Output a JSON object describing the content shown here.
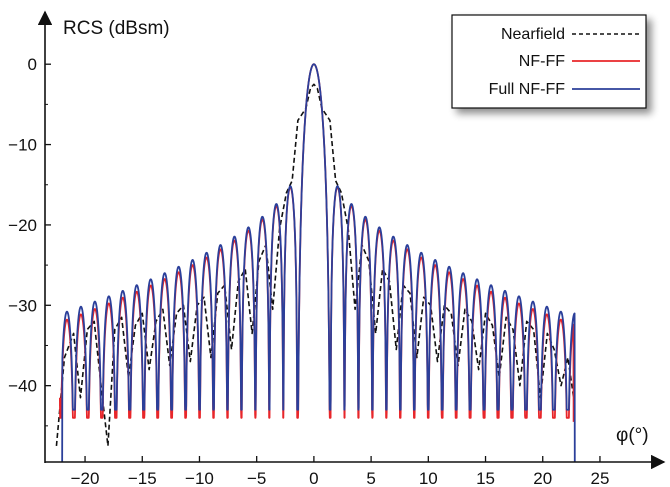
{
  "chart_data": {
    "type": "line",
    "ylabel": "RCS (dBsm)",
    "xlabel": "φ(°)",
    "xlim": [
      -23.5,
      28.5
    ],
    "ylim": [
      -49.5,
      5.5
    ],
    "x_ticks": [
      -20,
      -15,
      -10,
      -5,
      0,
      5,
      10,
      15,
      20,
      25
    ],
    "x_tick_labels": [
      "−20",
      "−15",
      "−10",
      "−5",
      "0",
      "5",
      "10",
      "15",
      "20",
      "25"
    ],
    "y_ticks": [
      0,
      -10,
      -20,
      -30,
      -40
    ],
    "y_tick_labels": [
      "0",
      "−10",
      "−20",
      "−30",
      "−40"
    ],
    "grid": false,
    "legend_position": "top-right",
    "series": [
      {
        "name": "Nearfield",
        "color": "#111111",
        "dash": "dashed",
        "points": [
          [
            -22.5,
            -47.5
          ],
          [
            -21.8,
            -36.5
          ],
          [
            -21.0,
            -33.5
          ],
          [
            -20.4,
            -41.5
          ],
          [
            -19.8,
            -33.0
          ],
          [
            -19.2,
            -32.0
          ],
          [
            -18.6,
            -40.0
          ],
          [
            -18.0,
            -47.5
          ],
          [
            -17.4,
            -33.0
          ],
          [
            -16.8,
            -31.5
          ],
          [
            -16.2,
            -39.0
          ],
          [
            -15.6,
            -32.5
          ],
          [
            -15.0,
            -31.0
          ],
          [
            -14.4,
            -38.0
          ],
          [
            -13.8,
            -32.0
          ],
          [
            -13.2,
            -30.5
          ],
          [
            -12.6,
            -37.5
          ],
          [
            -12.0,
            -31.0
          ],
          [
            -11.4,
            -30.0
          ],
          [
            -10.8,
            -37.0
          ],
          [
            -10.2,
            -30.0
          ],
          [
            -9.6,
            -29.0
          ],
          [
            -9.0,
            -36.5
          ],
          [
            -8.4,
            -28.5
          ],
          [
            -7.8,
            -27.5
          ],
          [
            -7.2,
            -35.5
          ],
          [
            -6.6,
            -27.0
          ],
          [
            -6.0,
            -25.5
          ],
          [
            -5.4,
            -33.5
          ],
          [
            -4.8,
            -24.5
          ],
          [
            -4.2,
            -22.5
          ],
          [
            -3.6,
            -30.5
          ],
          [
            -3.0,
            -20.5
          ],
          [
            -2.4,
            -16.0
          ],
          [
            -1.9,
            -14.5
          ],
          [
            -1.4,
            -7.0
          ],
          [
            -0.7,
            -5.5
          ],
          [
            -0.3,
            -3.0
          ],
          [
            0.0,
            -2.5
          ],
          [
            0.3,
            -3.0
          ],
          [
            0.7,
            -5.5
          ],
          [
            1.4,
            -7.0
          ],
          [
            1.9,
            -14.5
          ],
          [
            2.4,
            -16.0
          ],
          [
            3.0,
            -20.5
          ],
          [
            3.6,
            -30.5
          ],
          [
            4.2,
            -22.5
          ],
          [
            4.8,
            -24.5
          ],
          [
            5.4,
            -33.5
          ],
          [
            6.0,
            -25.5
          ],
          [
            6.6,
            -27.0
          ],
          [
            7.2,
            -35.5
          ],
          [
            7.8,
            -27.5
          ],
          [
            8.4,
            -28.5
          ],
          [
            9.0,
            -36.5
          ],
          [
            9.6,
            -29.0
          ],
          [
            10.2,
            -30.0
          ],
          [
            10.8,
            -37.0
          ],
          [
            11.4,
            -30.0
          ],
          [
            12.0,
            -31.0
          ],
          [
            12.6,
            -37.5
          ],
          [
            13.2,
            -30.5
          ],
          [
            13.8,
            -32.0
          ],
          [
            14.4,
            -38.0
          ],
          [
            15.0,
            -31.0
          ],
          [
            15.6,
            -32.5
          ],
          [
            16.2,
            -39.0
          ],
          [
            16.8,
            -31.5
          ],
          [
            17.4,
            -33.0
          ],
          [
            18.0,
            -40.0
          ],
          [
            18.6,
            -32.0
          ],
          [
            19.2,
            -33.0
          ],
          [
            19.8,
            -41.5
          ],
          [
            20.4,
            -33.5
          ],
          [
            21.0,
            -35.5
          ],
          [
            21.6,
            -40.0
          ],
          [
            22.2,
            -36.5
          ],
          [
            22.8,
            -42.5
          ]
        ]
      },
      {
        "name": "NF-FF",
        "color": "#e8262a",
        "dash": "solid",
        "center": 0,
        "main_lobe_peak": 0,
        "main_lobe_first_null": 1.45,
        "sidelobe_spacing": 1.22,
        "sidelobe_peaks_near": -12.5,
        "sidelobe_peaks_far": -32.0,
        "null_depth": -44.0,
        "x_range": [
          -22.2,
          22.7
        ],
        "start_value": -41.5,
        "end_value": -44.5
      },
      {
        "name": "Full NF-FF",
        "color": "#2b3f9a",
        "dash": "solid",
        "center": 0,
        "main_lobe_peak": 0,
        "main_lobe_first_null": 1.45,
        "sidelobe_spacing": 1.22,
        "sidelobe_peaks_near": -12.5,
        "sidelobe_peaks_far": -31.0,
        "null_depth": -43.0,
        "x_range": [
          -22.0,
          22.8
        ],
        "start_value": -49.5,
        "end_value": -49.5
      }
    ]
  },
  "legend": {
    "items": [
      {
        "label": "Nearfield",
        "color": "#111111",
        "dash": "dashed"
      },
      {
        "label": "NF-FF",
        "color": "#e8262a",
        "dash": "solid"
      },
      {
        "label": "Full NF-FF",
        "color": "#2b3f9a",
        "dash": "solid"
      }
    ]
  }
}
